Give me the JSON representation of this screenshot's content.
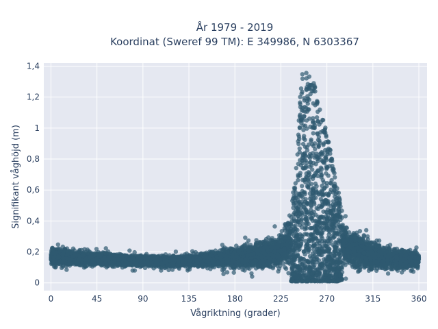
{
  "chart_data": {
    "type": "scatter",
    "title_lines": [
      "År 1979 - 2019",
      "Koordinat (Sweref 99 TM): E 349986, N 6303367"
    ],
    "xlabel": "Vågriktning (grader)",
    "ylabel": "Signifikant våghöjd (m)",
    "xlim": [
      -7,
      368
    ],
    "ylim": [
      -0.05,
      1.42
    ],
    "xticks": [
      0,
      45,
      90,
      135,
      180,
      225,
      270,
      315,
      360
    ],
    "xtick_labels": [
      "0",
      "45",
      "90",
      "135",
      "180",
      "225",
      "270",
      "315",
      "360"
    ],
    "yticks": [
      0,
      0.2,
      0.4,
      0.6,
      0.8,
      1.0,
      1.2,
      1.4
    ],
    "ytick_labels": [
      "0",
      "0,2",
      "0,4",
      "0,6",
      "0,8",
      "1",
      "1,2",
      "1,4"
    ],
    "grid": true,
    "colors": {
      "marker": "#2f5a70",
      "plot_bg": "#e5e8f1",
      "grid": "#ffffff",
      "text": "#2a3f5f"
    },
    "series": [
      {
        "envelope_x": [
          0,
          10,
          20,
          40,
          60,
          90,
          120,
          150,
          180,
          200,
          215,
          225,
          235,
          240,
          245,
          250,
          255,
          260,
          265,
          270,
          275,
          280,
          285,
          290,
          300,
          315,
          330,
          345,
          360
        ],
        "envelope_ymin": [
          0.06,
          0.07,
          0.07,
          0.08,
          0.08,
          0.08,
          0.08,
          0.07,
          0.05,
          0.03,
          0.02,
          0.02,
          0.01,
          0.01,
          0.01,
          0.01,
          0.01,
          0.01,
          0.01,
          0.01,
          0.01,
          0.01,
          0.02,
          0.02,
          0.02,
          0.03,
          0.03,
          0.04,
          0.06
        ],
        "envelope_ymax": [
          0.28,
          0.26,
          0.25,
          0.23,
          0.22,
          0.2,
          0.2,
          0.22,
          0.28,
          0.32,
          0.36,
          0.4,
          0.5,
          0.75,
          1.35,
          1.36,
          1.33,
          1.25,
          1.12,
          1.0,
          0.8,
          0.62,
          0.5,
          0.45,
          0.4,
          0.33,
          0.28,
          0.26,
          0.24
        ]
      }
    ]
  }
}
